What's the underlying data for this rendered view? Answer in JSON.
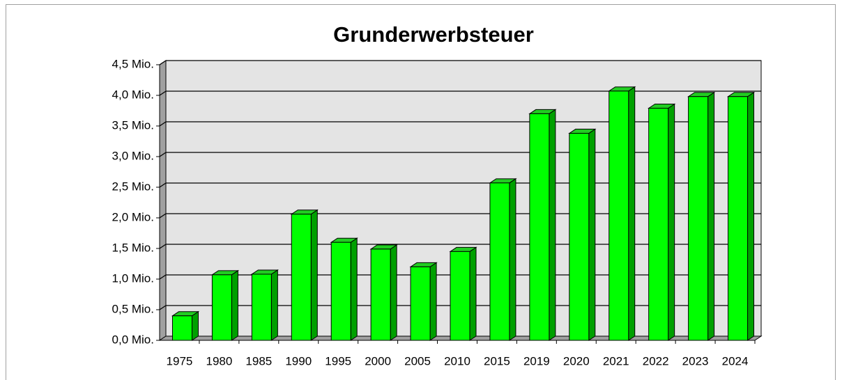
{
  "chart_data": {
    "type": "bar",
    "title": "Grunderwerbsteuer",
    "categories": [
      "1975",
      "1980",
      "1985",
      "1990",
      "1995",
      "2000",
      "2005",
      "2010",
      "2015",
      "2019",
      "2020",
      "2021",
      "2022",
      "2023",
      "2024"
    ],
    "values": [
      0.4,
      1.07,
      1.08,
      2.06,
      1.6,
      1.49,
      1.2,
      1.45,
      2.57,
      3.7,
      3.38,
      4.07,
      3.79,
      3.98,
      3.98
    ],
    "color": "#00ff00",
    "ylim": [
      0,
      4.5
    ],
    "yticks": [
      {
        "value": 0,
        "label": "0,0 Mio."
      },
      {
        "value": 0.5,
        "label": "0,5 Mio."
      },
      {
        "value": 1,
        "label": "1,0 Mio."
      },
      {
        "value": 1.5,
        "label": "1,5 Mio."
      },
      {
        "value": 2,
        "label": "2,0 Mio."
      },
      {
        "value": 2.5,
        "label": "2,5 Mio."
      },
      {
        "value": 3,
        "label": "3,0 Mio."
      },
      {
        "value": 3.5,
        "label": "3,5 Mio."
      },
      {
        "value": 4,
        "label": "4,0 Mio."
      },
      {
        "value": 4.5,
        "label": "4,5 Mio."
      }
    ],
    "grid": true
  }
}
